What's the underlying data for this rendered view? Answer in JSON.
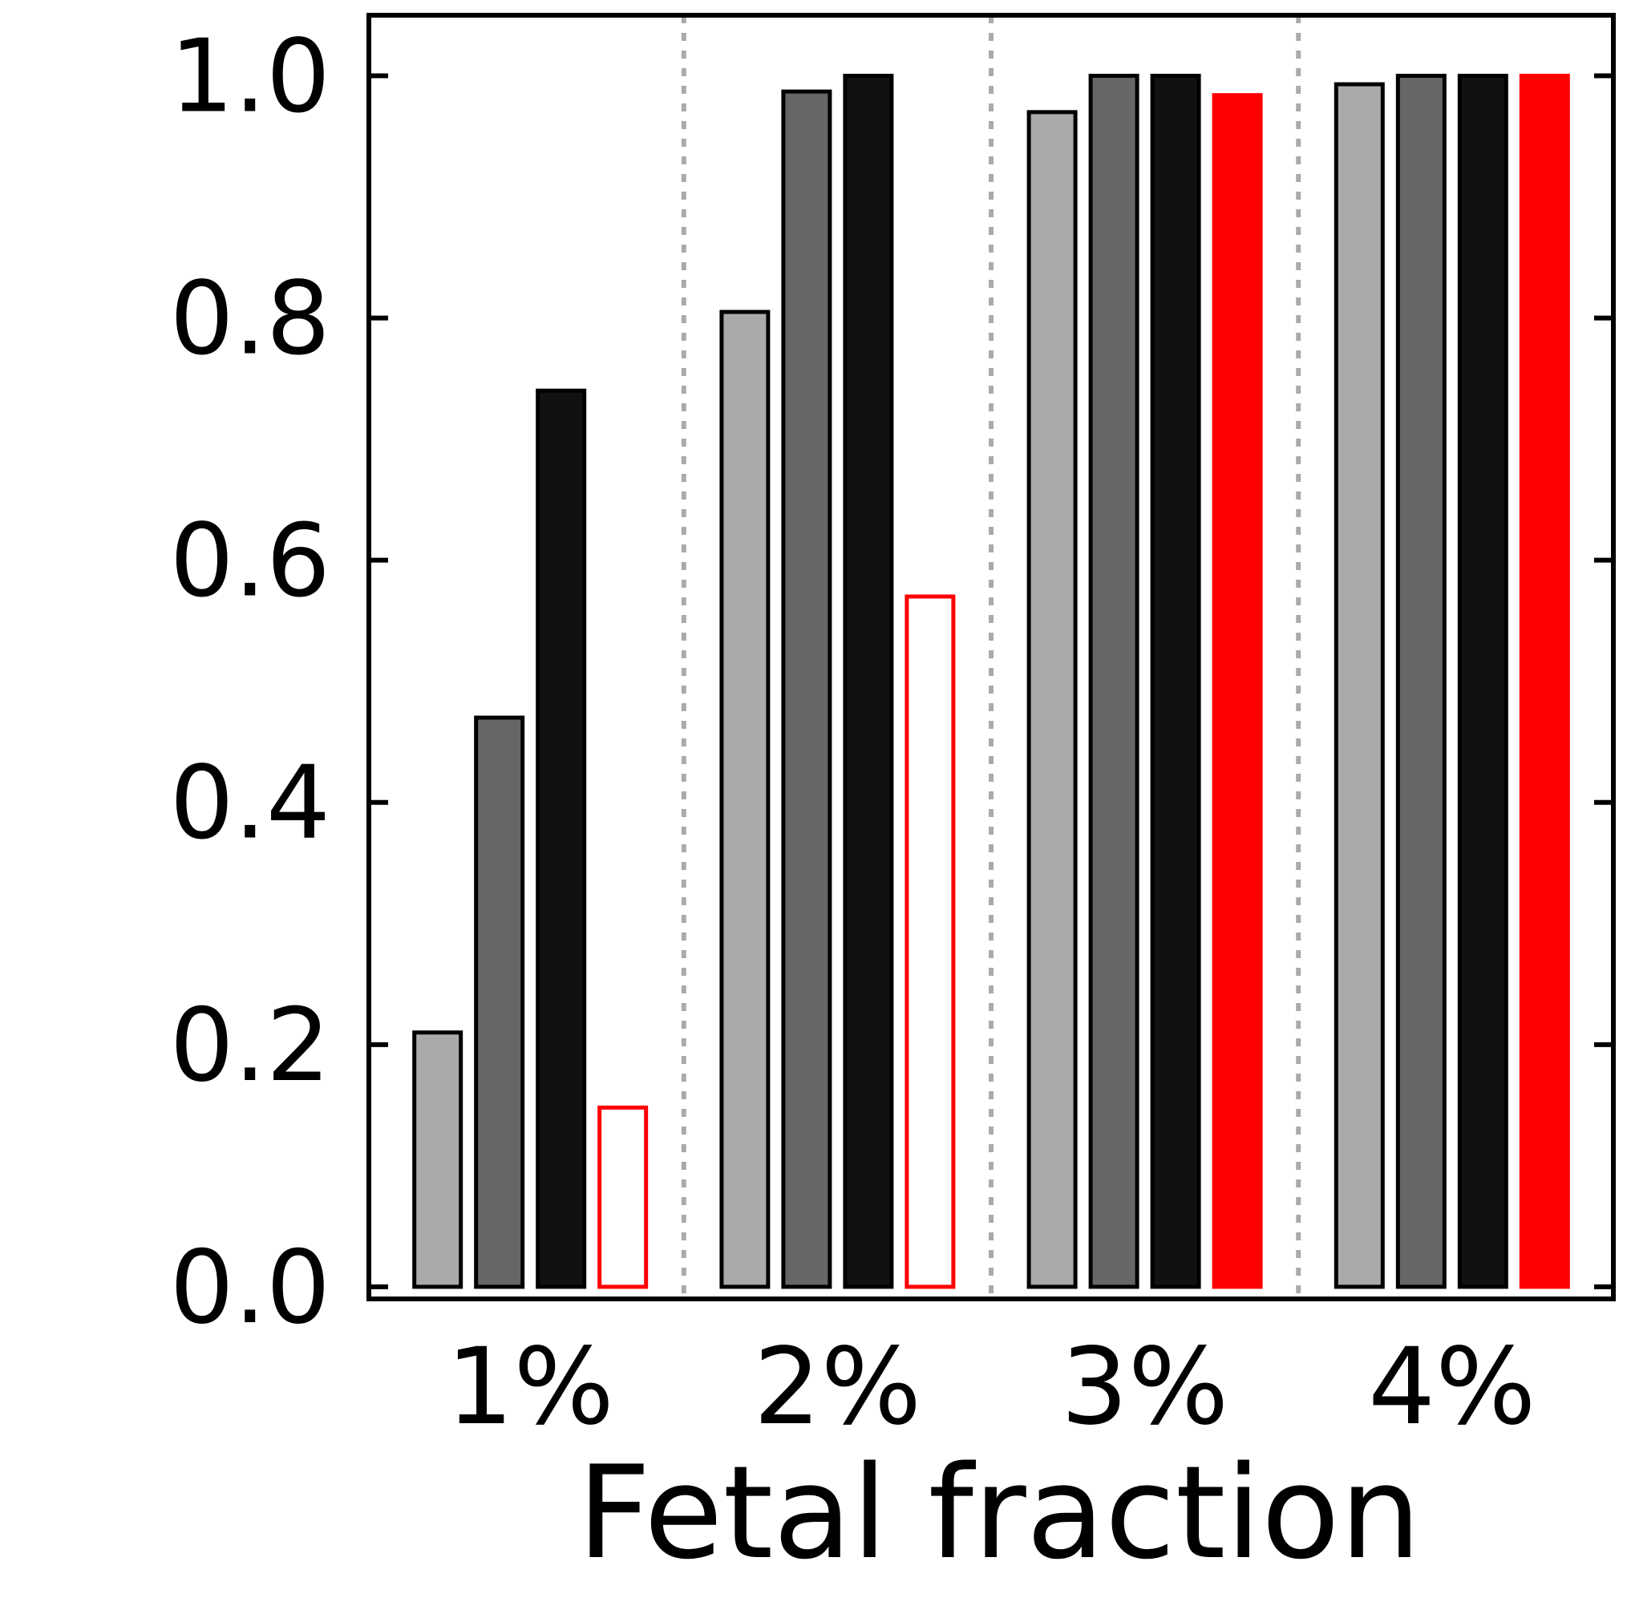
{
  "chart_data": {
    "type": "bar",
    "title": "",
    "xlabel": "Fetal fraction",
    "ylabel": "",
    "categories": [
      "1%",
      "2%",
      "3%",
      "4%"
    ],
    "ylim": [
      -0.01,
      1.05
    ],
    "yticks": [
      "0.0",
      "0.2",
      "0.4",
      "0.6",
      "0.8",
      "1.0"
    ],
    "ytick_values": [
      0.0,
      0.2,
      0.4,
      0.6,
      0.8,
      1.0
    ],
    "grid": false,
    "category_separators": "dotted gray",
    "legend": "none",
    "series": [
      {
        "fill": "#aaaaaa",
        "stroke": "#000000",
        "values": [
          0.21,
          0.805,
          0.97,
          0.993
        ]
      },
      {
        "fill": "#666666",
        "stroke": "#000000",
        "values": [
          0.47,
          0.987,
          1.0,
          1.0
        ]
      },
      {
        "fill": "#111111",
        "stroke": "#000000",
        "values": [
          0.74,
          1.0,
          1.0,
          1.0
        ]
      },
      {
        "fill": [
          "#ffffff",
          "#ffffff",
          "#ff0000",
          "#ff0000"
        ],
        "stroke": "#ff0000",
        "values": [
          0.148,
          0.57,
          0.984,
          1.0
        ]
      }
    ]
  }
}
